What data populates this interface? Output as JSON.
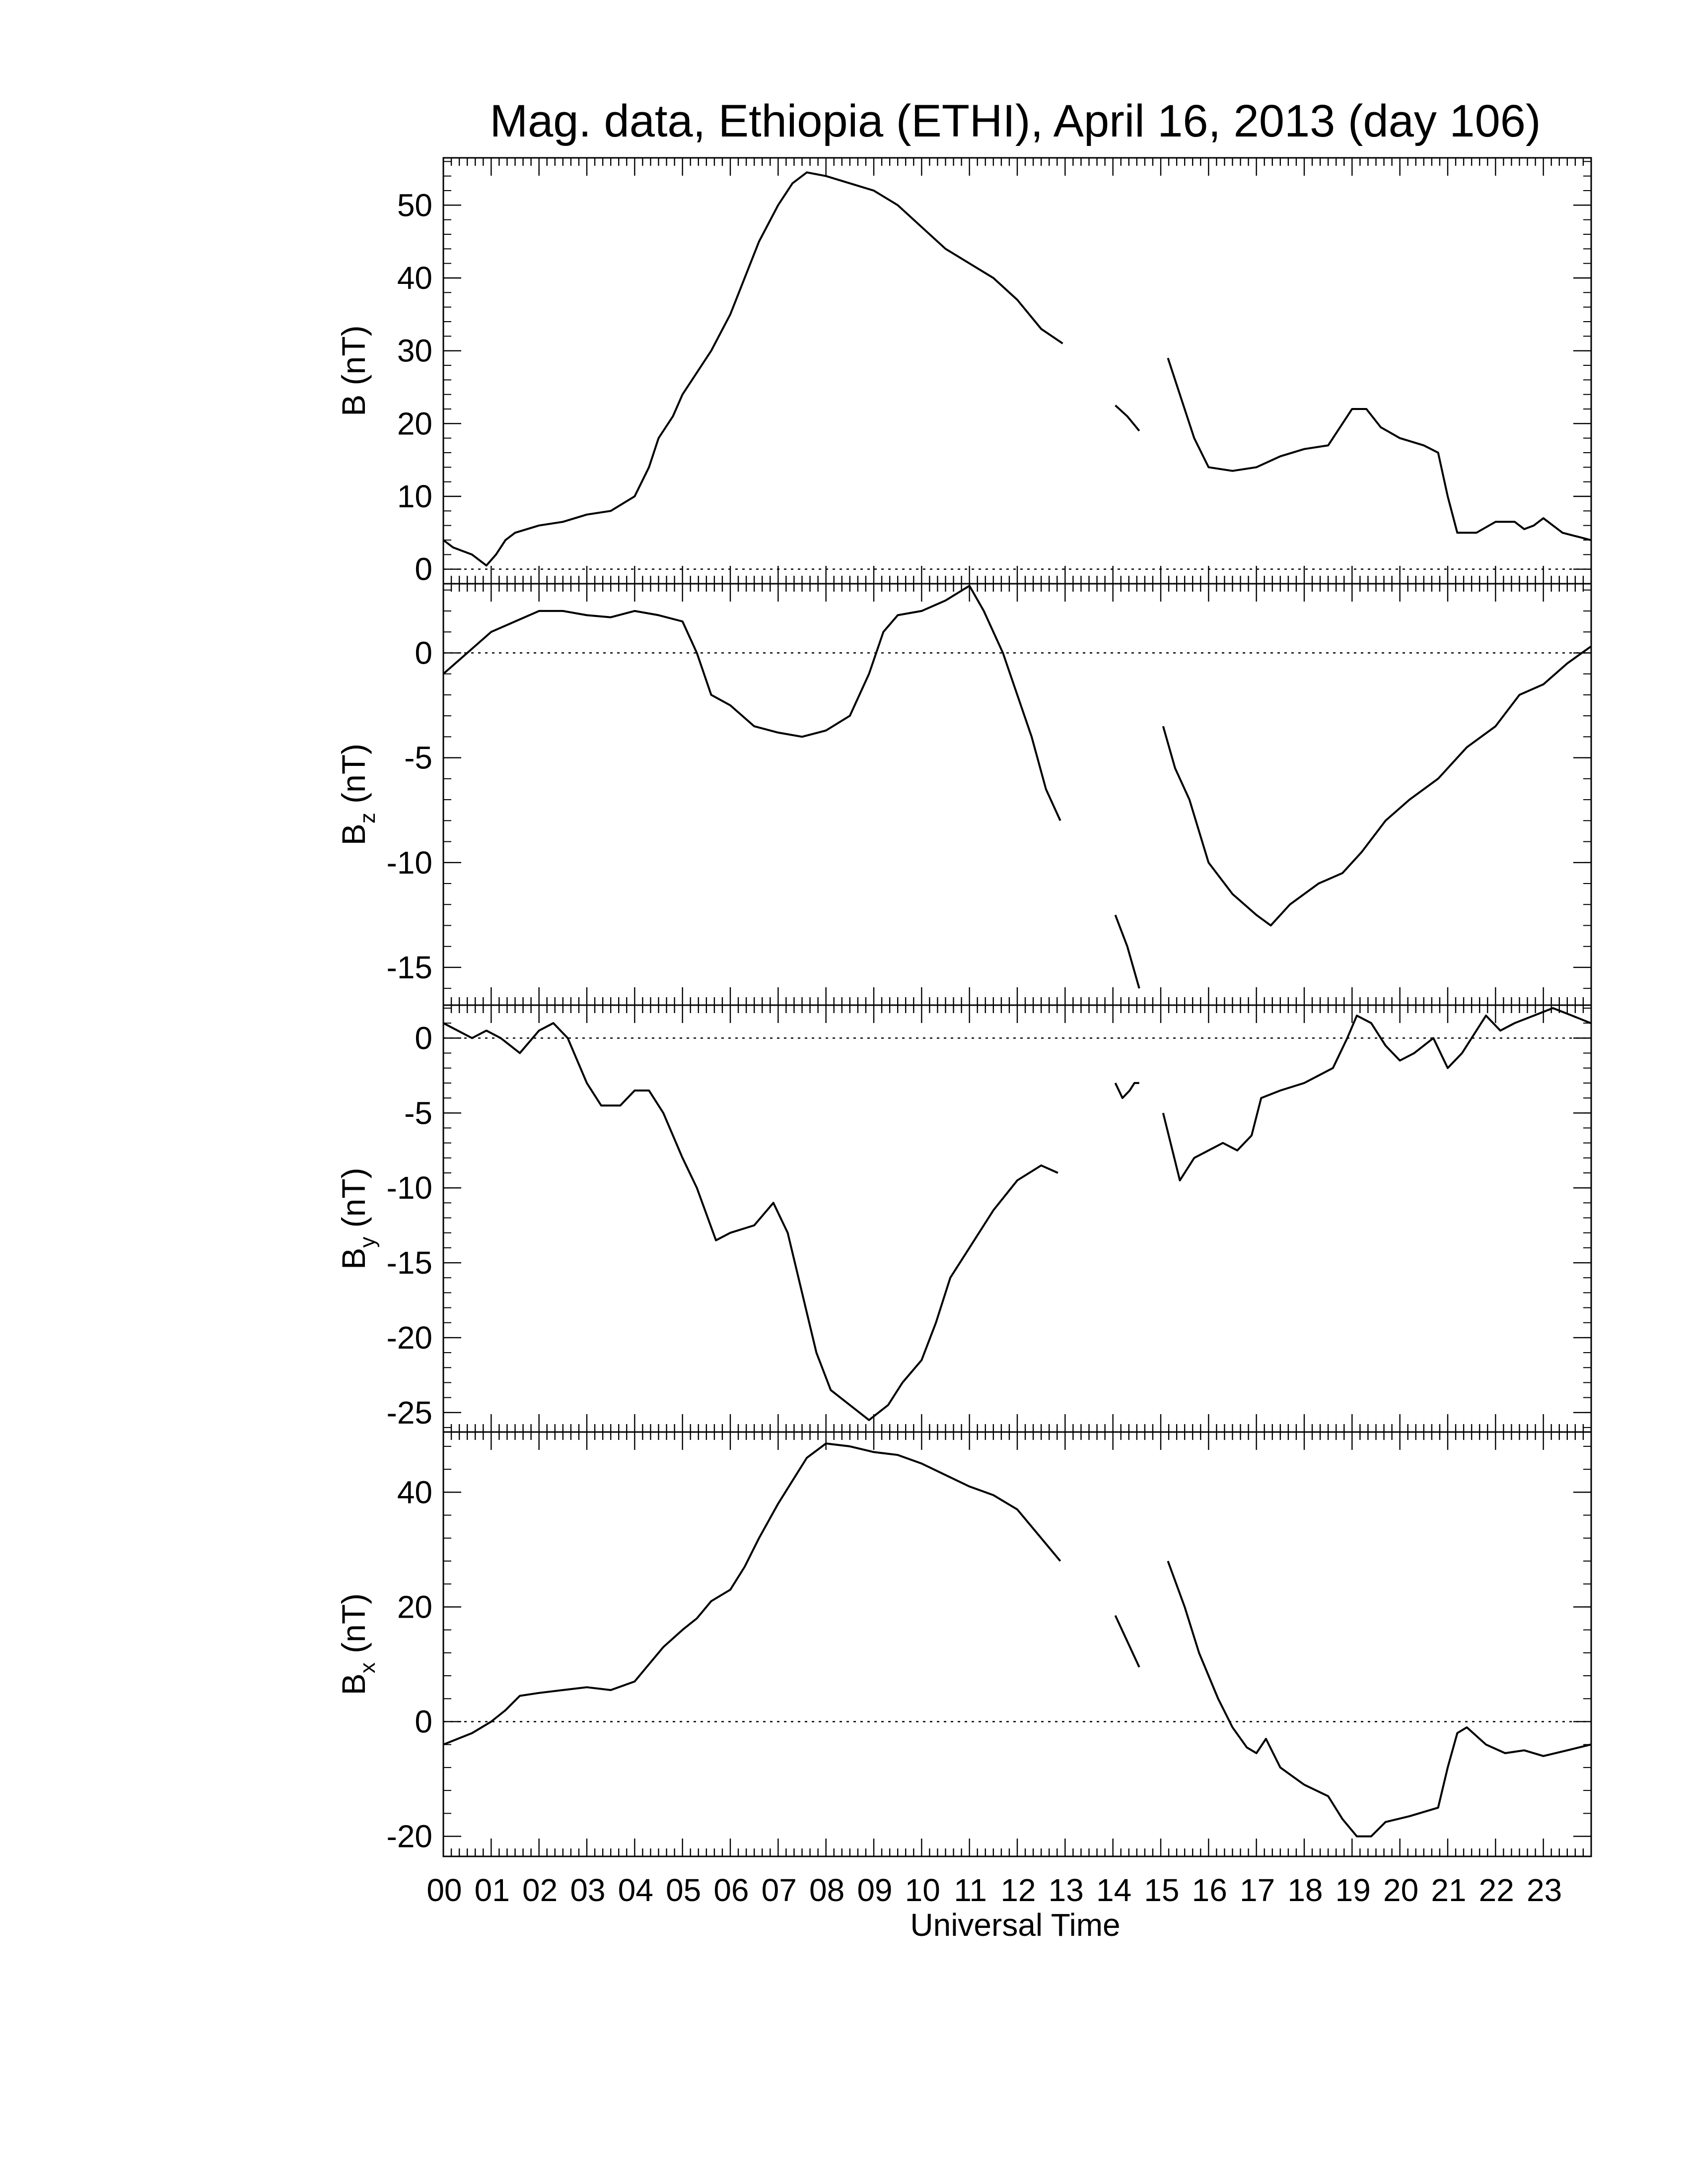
{
  "title": "Mag. data, Ethiopia (ETHI), April 16, 2013 (day 106)",
  "xlabel": "Universal Time",
  "x_tick_labels": [
    "00",
    "01",
    "02",
    "03",
    "04",
    "05",
    "06",
    "07",
    "08",
    "09",
    "10",
    "11",
    "12",
    "13",
    "14",
    "15",
    "16",
    "17",
    "18",
    "19",
    "20",
    "21",
    "22",
    "23"
  ],
  "chart_data": [
    {
      "type": "line",
      "ylabel": "B (nT)",
      "ylabel_main": "B",
      "ylabel_sub": "",
      "ylabel_unit": " (nT)",
      "xlim": [
        0,
        24
      ],
      "ylim": [
        -2,
        56.5
      ],
      "yticks": [
        0,
        10,
        20,
        30,
        40,
        50
      ],
      "zero_line": true,
      "segments": [
        [
          [
            0,
            4
          ],
          [
            0.2,
            3
          ],
          [
            0.4,
            2.5
          ],
          [
            0.6,
            2
          ],
          [
            0.8,
            1
          ],
          [
            0.9,
            0.5
          ],
          [
            1.1,
            2
          ],
          [
            1.3,
            4
          ],
          [
            1.5,
            5
          ],
          [
            2,
            6
          ],
          [
            2.5,
            6.5
          ],
          [
            3,
            7.5
          ],
          [
            3.5,
            8
          ],
          [
            4,
            10
          ],
          [
            4.3,
            14
          ],
          [
            4.5,
            18
          ],
          [
            4.8,
            21
          ],
          [
            5,
            24
          ],
          [
            5.3,
            27
          ],
          [
            5.6,
            30
          ],
          [
            6,
            35
          ],
          [
            6.3,
            40
          ],
          [
            6.6,
            45
          ],
          [
            7,
            50
          ],
          [
            7.3,
            53
          ],
          [
            7.6,
            54.5
          ],
          [
            8,
            54
          ],
          [
            8.5,
            53
          ],
          [
            9,
            52
          ],
          [
            9.5,
            50
          ],
          [
            10,
            47
          ],
          [
            10.5,
            44
          ],
          [
            11,
            42
          ],
          [
            11.5,
            40
          ],
          [
            12,
            37
          ],
          [
            12.5,
            33
          ],
          [
            12.95,
            31
          ]
        ],
        [
          [
            14.05,
            22.5
          ],
          [
            14.3,
            21
          ],
          [
            14.55,
            19
          ]
        ],
        [
          [
            15.15,
            29
          ],
          [
            15.4,
            24
          ],
          [
            15.7,
            18
          ],
          [
            16,
            14
          ],
          [
            16.5,
            13.5
          ],
          [
            17,
            14
          ],
          [
            17.5,
            15.5
          ],
          [
            18,
            16.5
          ],
          [
            18.5,
            17
          ],
          [
            18.8,
            20
          ],
          [
            19,
            22
          ],
          [
            19.3,
            22
          ],
          [
            19.6,
            19.5
          ],
          [
            20,
            18
          ],
          [
            20.5,
            17
          ],
          [
            20.8,
            16
          ],
          [
            21,
            10
          ],
          [
            21.2,
            5
          ],
          [
            21.6,
            5
          ],
          [
            22,
            6.5
          ],
          [
            22.4,
            6.5
          ],
          [
            22.6,
            5.5
          ],
          [
            22.8,
            6
          ],
          [
            23,
            7
          ],
          [
            23.4,
            5
          ],
          [
            23.99,
            4
          ]
        ]
      ]
    },
    {
      "type": "line",
      "ylabel": "Bz (nT)",
      "ylabel_main": "B",
      "ylabel_sub": "z",
      "ylabel_unit": " (nT)",
      "xlim": [
        0,
        24
      ],
      "ylim": [
        -16.8,
        3.3
      ],
      "yticks": [
        0,
        -5,
        -10,
        -15
      ],
      "zero_line": true,
      "segments": [
        [
          [
            0,
            -1
          ],
          [
            0.5,
            0
          ],
          [
            1,
            1
          ],
          [
            1.5,
            1.5
          ],
          [
            2,
            2
          ],
          [
            2.5,
            2
          ],
          [
            3,
            1.8
          ],
          [
            3.5,
            1.7
          ],
          [
            4,
            2
          ],
          [
            4.5,
            1.8
          ],
          [
            5,
            1.5
          ],
          [
            5.3,
            0
          ],
          [
            5.6,
            -2
          ],
          [
            6,
            -2.5
          ],
          [
            6.5,
            -3.5
          ],
          [
            7,
            -3.8
          ],
          [
            7.5,
            -4
          ],
          [
            8,
            -3.7
          ],
          [
            8.5,
            -3
          ],
          [
            8.9,
            -1
          ],
          [
            9.2,
            1
          ],
          [
            9.5,
            1.8
          ],
          [
            10,
            2
          ],
          [
            10.5,
            2.5
          ],
          [
            11,
            3.2
          ],
          [
            11.3,
            2
          ],
          [
            11.7,
            0
          ],
          [
            12,
            -2
          ],
          [
            12.3,
            -4
          ],
          [
            12.6,
            -6.5
          ],
          [
            12.9,
            -8
          ]
        ],
        [
          [
            14.05,
            -12.5
          ],
          [
            14.3,
            -14
          ],
          [
            14.55,
            -16
          ]
        ],
        [
          [
            15.05,
            -3.5
          ],
          [
            15.3,
            -5.5
          ],
          [
            15.6,
            -7
          ],
          [
            16,
            -10
          ],
          [
            16.5,
            -11.5
          ],
          [
            17,
            -12.5
          ],
          [
            17.3,
            -13
          ],
          [
            17.7,
            -12
          ],
          [
            18.3,
            -11
          ],
          [
            18.8,
            -10.5
          ],
          [
            19.2,
            -9.5
          ],
          [
            19.7,
            -8
          ],
          [
            20.2,
            -7
          ],
          [
            20.8,
            -6
          ],
          [
            21.4,
            -4.5
          ],
          [
            22,
            -3.5
          ],
          [
            22.5,
            -2
          ],
          [
            23,
            -1.5
          ],
          [
            23.5,
            -0.5
          ],
          [
            23.99,
            0.3
          ]
        ]
      ]
    },
    {
      "type": "line",
      "ylabel": "By (nT)",
      "ylabel_main": "B",
      "ylabel_sub": "y",
      "ylabel_unit": " (nT)",
      "xlim": [
        0,
        24
      ],
      "ylim": [
        -26.3,
        2.2
      ],
      "yticks": [
        0,
        -5,
        -10,
        -15,
        -20,
        -25
      ],
      "zero_line": true,
      "segments": [
        [
          [
            0,
            1
          ],
          [
            0.3,
            0.5
          ],
          [
            0.6,
            0
          ],
          [
            0.9,
            0.5
          ],
          [
            1.2,
            0
          ],
          [
            1.6,
            -1
          ],
          [
            2,
            0.5
          ],
          [
            2.3,
            1
          ],
          [
            2.6,
            0
          ],
          [
            3,
            -3
          ],
          [
            3.3,
            -4.5
          ],
          [
            3.7,
            -4.5
          ],
          [
            4,
            -3.5
          ],
          [
            4.3,
            -3.5
          ],
          [
            4.6,
            -5
          ],
          [
            5,
            -8
          ],
          [
            5.3,
            -10
          ],
          [
            5.7,
            -13.5
          ],
          [
            6,
            -13
          ],
          [
            6.5,
            -12.5
          ],
          [
            6.9,
            -11
          ],
          [
            7.2,
            -13
          ],
          [
            7.5,
            -17
          ],
          [
            7.8,
            -21
          ],
          [
            8.1,
            -23.5
          ],
          [
            8.5,
            -24.5
          ],
          [
            8.9,
            -25.5
          ],
          [
            9.3,
            -24.5
          ],
          [
            9.6,
            -23
          ],
          [
            10,
            -21.5
          ],
          [
            10.3,
            -19
          ],
          [
            10.6,
            -16
          ],
          [
            11,
            -14
          ],
          [
            11.5,
            -11.5
          ],
          [
            12,
            -9.5
          ],
          [
            12.5,
            -8.5
          ],
          [
            12.85,
            -9
          ]
        ],
        [
          [
            14.05,
            -3
          ],
          [
            14.2,
            -4
          ],
          [
            14.35,
            -3.5
          ],
          [
            14.45,
            -3
          ],
          [
            14.55,
            -3
          ]
        ],
        [
          [
            15.05,
            -5
          ],
          [
            15.4,
            -9.5
          ],
          [
            15.7,
            -8
          ],
          [
            16,
            -7.5
          ],
          [
            16.3,
            -7
          ],
          [
            16.6,
            -7.5
          ],
          [
            16.9,
            -6.5
          ],
          [
            17.1,
            -4
          ],
          [
            17.5,
            -3.5
          ],
          [
            18,
            -3
          ],
          [
            18.3,
            -2.5
          ],
          [
            18.6,
            -2
          ],
          [
            18.9,
            0
          ],
          [
            19.1,
            1.5
          ],
          [
            19.4,
            1
          ],
          [
            19.7,
            -0.5
          ],
          [
            20,
            -1.5
          ],
          [
            20.3,
            -1
          ],
          [
            20.7,
            0
          ],
          [
            21,
            -2
          ],
          [
            21.3,
            -1
          ],
          [
            21.6,
            0.5
          ],
          [
            21.8,
            1.5
          ],
          [
            22.1,
            0.5
          ],
          [
            22.4,
            1
          ],
          [
            22.8,
            1.5
          ],
          [
            23.2,
            2
          ],
          [
            23.6,
            1.5
          ],
          [
            23.99,
            1
          ]
        ]
      ]
    },
    {
      "type": "line",
      "ylabel": "Bx (nT)",
      "ylabel_main": "B",
      "ylabel_sub": "x",
      "ylabel_unit": " (nT)",
      "xlim": [
        0,
        24
      ],
      "ylim": [
        -23.5,
        50.5
      ],
      "yticks": [
        40,
        20,
        0,
        -20
      ],
      "zero_line": true,
      "segments": [
        [
          [
            0,
            -4
          ],
          [
            0.3,
            -3
          ],
          [
            0.6,
            -2
          ],
          [
            1,
            0
          ],
          [
            1.3,
            2
          ],
          [
            1.6,
            4.5
          ],
          [
            2,
            5
          ],
          [
            2.5,
            5.5
          ],
          [
            3,
            6
          ],
          [
            3.5,
            5.5
          ],
          [
            4,
            7
          ],
          [
            4.3,
            10
          ],
          [
            4.6,
            13
          ],
          [
            5,
            16
          ],
          [
            5.3,
            18
          ],
          [
            5.6,
            21
          ],
          [
            6,
            23
          ],
          [
            6.3,
            27
          ],
          [
            6.6,
            32
          ],
          [
            7,
            38
          ],
          [
            7.3,
            42
          ],
          [
            7.6,
            46
          ],
          [
            8,
            48.5
          ],
          [
            8.5,
            48
          ],
          [
            9,
            47
          ],
          [
            9.5,
            46.5
          ],
          [
            10,
            45
          ],
          [
            10.5,
            43
          ],
          [
            11,
            41
          ],
          [
            11.5,
            39.5
          ],
          [
            12,
            37
          ],
          [
            12.5,
            32
          ],
          [
            12.9,
            28
          ]
        ],
        [
          [
            14.05,
            18.5
          ],
          [
            14.3,
            14
          ],
          [
            14.55,
            9.5
          ]
        ],
        [
          [
            15.15,
            28
          ],
          [
            15.5,
            20
          ],
          [
            15.8,
            12
          ],
          [
            16.2,
            4
          ],
          [
            16.5,
            -1
          ],
          [
            16.8,
            -4.5
          ],
          [
            17,
            -5.5
          ],
          [
            17.2,
            -3
          ],
          [
            17.5,
            -8
          ],
          [
            18,
            -11
          ],
          [
            18.5,
            -13
          ],
          [
            18.8,
            -17
          ],
          [
            19.1,
            -20
          ],
          [
            19.4,
            -20
          ],
          [
            19.7,
            -17.5
          ],
          [
            20.2,
            -16.5
          ],
          [
            20.8,
            -15
          ],
          [
            21,
            -8
          ],
          [
            21.2,
            -2
          ],
          [
            21.4,
            -1
          ],
          [
            21.8,
            -4
          ],
          [
            22.2,
            -5.5
          ],
          [
            22.6,
            -5
          ],
          [
            23,
            -6
          ],
          [
            23.5,
            -5
          ],
          [
            23.99,
            -4
          ]
        ]
      ]
    }
  ]
}
